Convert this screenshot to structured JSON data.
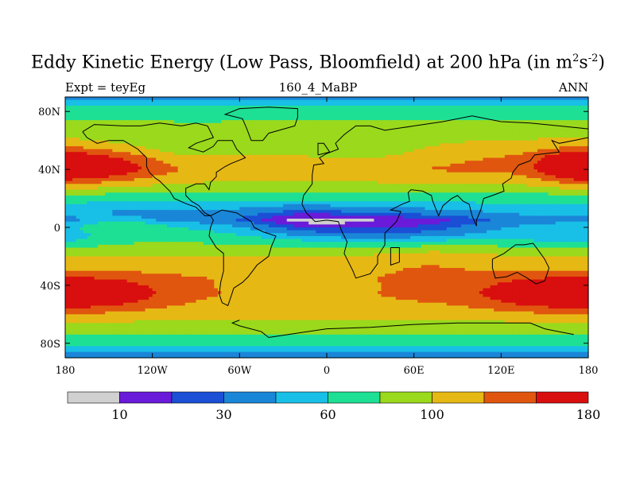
{
  "title": {
    "main": "Eddy Kinetic Energy (Low Pass, Bloomfield) at 200 hPa (in m",
    "sup1": "2",
    "s": "s",
    "sup2": "-2",
    "close": ")"
  },
  "subtitle": {
    "left": "Expt = teyEg",
    "center": "160_4_MaBP",
    "right": "ANN"
  },
  "colors": {
    "levels": [
      "#d0d0d0",
      "#6a1bd9",
      "#1a4fd6",
      "#1a86d8",
      "#18bfe6",
      "#1ee094",
      "#9ad91c",
      "#e6b814",
      "#e0560f",
      "#d90e0e"
    ],
    "land_outline": "#000000",
    "frame": "#000000"
  },
  "chart_data": {
    "type": "heatmap",
    "title": "Eddy Kinetic Energy (Low Pass, Bloomfield) at 200 hPa (in m^2 s^-2)",
    "experiment": "Expt = teyEg",
    "case": "160_4_MaBP",
    "season": "ANN",
    "xlim": [
      -180,
      180
    ],
    "ylim": [
      -90,
      90
    ],
    "x_ticks": [
      {
        "value": -180,
        "label": "180"
      },
      {
        "value": -120,
        "label": "120W"
      },
      {
        "value": -60,
        "label": "60W"
      },
      {
        "value": 0,
        "label": "0"
      },
      {
        "value": 60,
        "label": "60E"
      },
      {
        "value": 120,
        "label": "120E"
      },
      {
        "value": 180,
        "label": "180"
      }
    ],
    "y_ticks": [
      {
        "value": 80,
        "label": "80N"
      },
      {
        "value": 40,
        "label": "40N"
      },
      {
        "value": 0,
        "label": "0"
      },
      {
        "value": -40,
        "label": "40S"
      },
      {
        "value": -80,
        "label": "80S"
      }
    ],
    "colorbar": {
      "boundaries": [
        0,
        10,
        20,
        30,
        45,
        60,
        80,
        100,
        125,
        150,
        180,
        210
      ],
      "labels": [
        {
          "value": 10,
          "label": "10"
        },
        {
          "value": 30,
          "label": "30"
        },
        {
          "value": 60,
          "label": "60"
        },
        {
          "value": 100,
          "label": "100"
        },
        {
          "value": 180,
          "label": "180"
        }
      ]
    },
    "zonal_profile": [
      {
        "lat": 90,
        "value": 20
      },
      {
        "lat": 87,
        "value": 55
      },
      {
        "lat": 80,
        "value": 70
      },
      {
        "lat": 70,
        "value": 88
      },
      {
        "lat": 60,
        "value": 100
      },
      {
        "lat": 48,
        "value": 125
      },
      {
        "lat": 40,
        "value": 130
      },
      {
        "lat": 32,
        "value": 105
      },
      {
        "lat": 24,
        "value": 80
      },
      {
        "lat": 16,
        "value": 62
      },
      {
        "lat": 10,
        "value": 55
      },
      {
        "lat": 5,
        "value": 48
      },
      {
        "lat": 0,
        "value": 62
      },
      {
        "lat": -6,
        "value": 70
      },
      {
        "lat": -14,
        "value": 88
      },
      {
        "lat": -24,
        "value": 108
      },
      {
        "lat": -36,
        "value": 130
      },
      {
        "lat": -46,
        "value": 135
      },
      {
        "lat": -56,
        "value": 118
      },
      {
        "lat": -64,
        "value": 100
      },
      {
        "lat": -72,
        "value": 85
      },
      {
        "lat": -80,
        "value": 68
      },
      {
        "lat": -86,
        "value": 50
      },
      {
        "lat": -90,
        "value": 25
      }
    ],
    "features": [
      {
        "lon": -160,
        "lat": 42,
        "slon": 30,
        "slat": 8,
        "amp": 55
      },
      {
        "lon": 170,
        "lat": 42,
        "slon": 18,
        "slat": 8,
        "amp": 45
      },
      {
        "lon": -160,
        "lat": -46,
        "slon": 30,
        "slat": 8,
        "amp": 45
      },
      {
        "lon": 150,
        "lat": -46,
        "slon": 30,
        "slat": 8,
        "amp": 45
      },
      {
        "lon": -90,
        "lat": 52,
        "slon": 45,
        "slat": 10,
        "amp": -25
      },
      {
        "lon": 20,
        "lat": 52,
        "slon": 35,
        "slat": 9,
        "amp": -28
      },
      {
        "lon": 50,
        "lat": 0,
        "slon": 55,
        "slat": 9,
        "amp": -40
      },
      {
        "lon": -20,
        "lat": 5,
        "slon": 30,
        "slat": 8,
        "amp": -25
      },
      {
        "lon": -120,
        "lat": 10,
        "slon": 45,
        "slat": 6,
        "amp": -15
      },
      {
        "lon": -140,
        "lat": 2,
        "slon": 20,
        "slat": 4,
        "amp": 20
      },
      {
        "lon": 170,
        "lat": -8,
        "slon": 25,
        "slat": 5,
        "amp": -20
      },
      {
        "lon": -20,
        "lat": -44,
        "slon": 40,
        "slat": 8,
        "amp": -25
      },
      {
        "lon": 70,
        "lat": -22,
        "slon": 30,
        "slat": 8,
        "amp": 15
      }
    ]
  }
}
